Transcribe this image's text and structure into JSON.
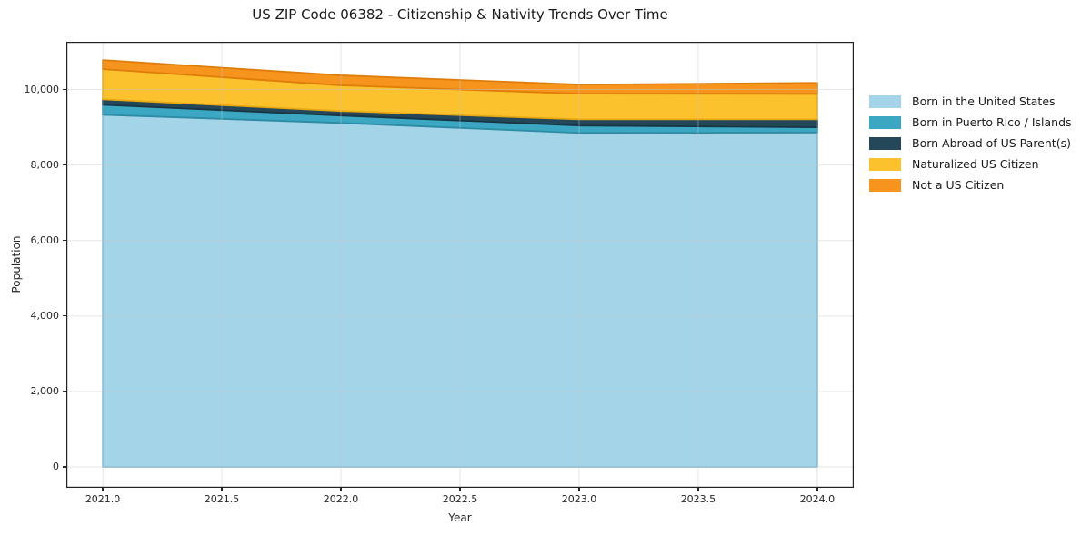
{
  "title": "US ZIP Code 06382 - Citizenship & Nativity Trends Over Time",
  "axes": {
    "xlabel": "Year",
    "ylabel": "Population",
    "x_ticks": [
      {
        "value": 2021.0,
        "label": "2021.0"
      },
      {
        "value": 2021.5,
        "label": "2021.5"
      },
      {
        "value": 2022.0,
        "label": "2022.0"
      },
      {
        "value": 2022.5,
        "label": "2022.5"
      },
      {
        "value": 2023.0,
        "label": "2023.0"
      },
      {
        "value": 2023.5,
        "label": "2023.5"
      },
      {
        "value": 2024.0,
        "label": "2024.0"
      }
    ],
    "y_ticks": [
      {
        "value": 0,
        "label": "0"
      },
      {
        "value": 2000,
        "label": "2,000"
      },
      {
        "value": 4000,
        "label": "4,000"
      },
      {
        "value": 6000,
        "label": "6,000"
      },
      {
        "value": 8000,
        "label": "8,000"
      },
      {
        "value": 10000,
        "label": "10,000"
      }
    ]
  },
  "legend": {
    "position": "outside-right",
    "entries": [
      "Born in the United States",
      "Born in Puerto Rico / Islands",
      "Born Abroad of US Parent(s)",
      "Naturalized US Citizen",
      "Not a US Citizen"
    ]
  },
  "chart_data": {
    "type": "area",
    "stacked": true,
    "title": "US ZIP Code 06382 - Citizenship & Nativity Trends Over Time",
    "xlabel": "Year",
    "ylabel": "Population",
    "x": [
      2021,
      2022,
      2023,
      2024
    ],
    "series": [
      {
        "name": "Born in the United States",
        "color": "#a3d4e8",
        "edge": "#82bcd6",
        "values": [
          9330,
          9115,
          8850,
          8860
        ]
      },
      {
        "name": "Born in Puerto Rico / Islands",
        "color": "#3ba7c2",
        "edge": "#2d8ba3",
        "values": [
          265,
          195,
          195,
          140
        ]
      },
      {
        "name": "Born Abroad of US Parent(s)",
        "color": "#24485a",
        "edge": "#183543",
        "values": [
          145,
          120,
          165,
          210
        ]
      },
      {
        "name": "Naturalized US Citizen",
        "color": "#fcc22d",
        "edge": "#e8a912",
        "values": [
          800,
          680,
          680,
          675
        ]
      },
      {
        "name": "Not a US Citizen",
        "color": "#f6941e",
        "edge": "#de7d0a",
        "values": [
          240,
          265,
          240,
          290
        ]
      }
    ],
    "totals": [
      10780,
      10375,
      10130,
      10175
    ],
    "xlim": [
      2020.847,
      2024.153
    ],
    "ylim": [
      -553,
      11264
    ],
    "grid": true,
    "style": {
      "grid_color": "#c8c8c8",
      "grid_opacity": 0.45,
      "spine_color": "#222222",
      "text_color": "#262626",
      "background": "#ffffff"
    }
  }
}
